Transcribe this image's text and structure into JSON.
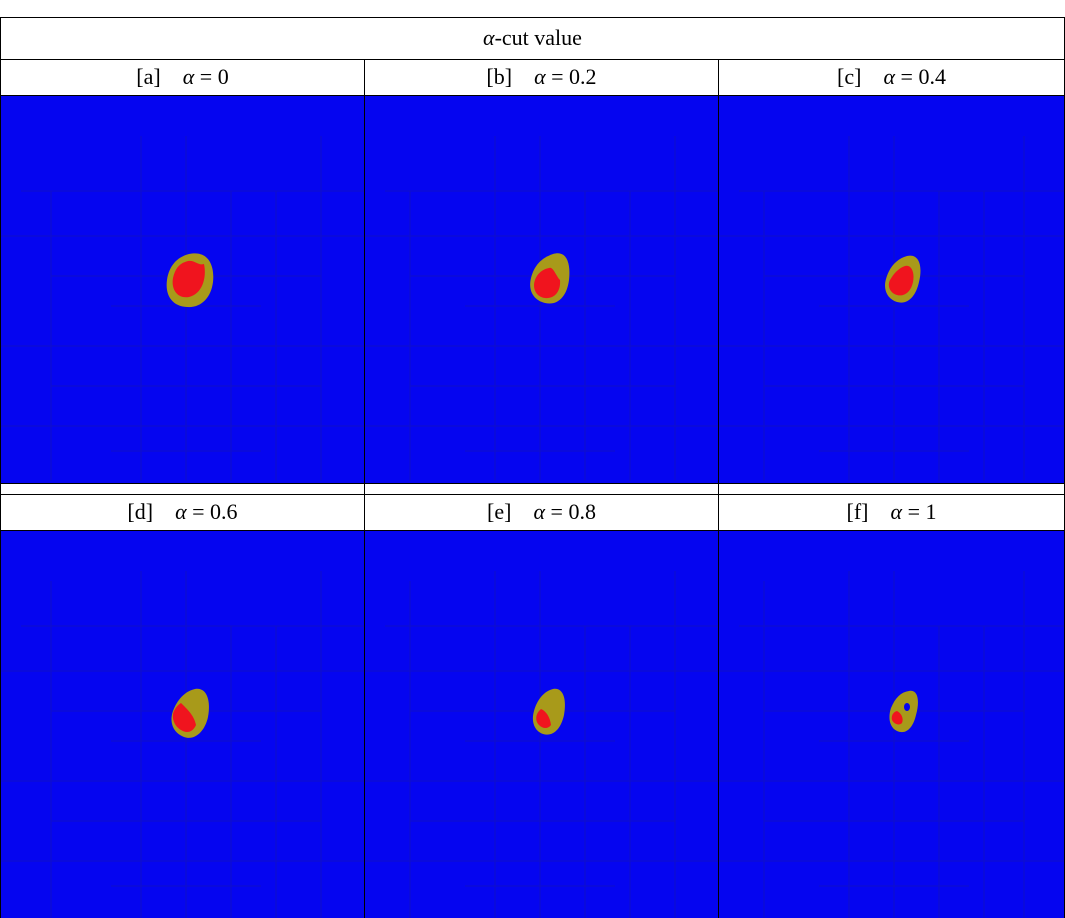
{
  "header": {
    "symbol": "α",
    "text": "-cut value"
  },
  "panels": [
    {
      "tag": "[a]",
      "symbol": "α",
      "relation": "= 0"
    },
    {
      "tag": "[b]",
      "symbol": "α",
      "relation": "= 0.2"
    },
    {
      "tag": "[c]",
      "symbol": "α",
      "relation": "= 0.4"
    },
    {
      "tag": "[d]",
      "symbol": "α",
      "relation": "= 0.6"
    },
    {
      "tag": "[e]",
      "symbol": "α",
      "relation": "= 0.8"
    },
    {
      "tag": "[f]",
      "symbol": "α",
      "relation": "= 1"
    }
  ],
  "colors": {
    "background": "#0505f0",
    "outer_region": "#a89a1a",
    "inner_region": "#f0141e",
    "grid": "#1a1aa8"
  }
}
